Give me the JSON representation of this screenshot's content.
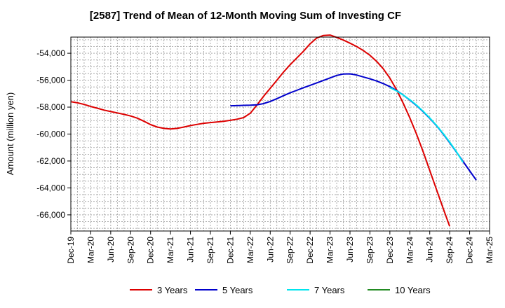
{
  "chart_data": {
    "type": "line",
    "title": "[2587]  Trend of Mean of 12-Month Moving Sum of Investing CF",
    "xlabel": "",
    "ylabel": "Amount (million yen)",
    "ylim": [
      -67200,
      -52800
    ],
    "xlim": [
      "Dec-19",
      "Mar-25"
    ],
    "grid": true,
    "legend_position": "bottom",
    "x_tick_labels": [
      "Dec-19",
      "Mar-20",
      "Jun-20",
      "Sep-20",
      "Dec-20",
      "Mar-21",
      "Jun-21",
      "Sep-21",
      "Dec-21",
      "Mar-22",
      "Jun-22",
      "Sep-22",
      "Dec-22",
      "Mar-23",
      "Jun-23",
      "Sep-23",
      "Dec-23",
      "Mar-24",
      "Jun-24",
      "Sep-24",
      "Dec-24",
      "Mar-25"
    ],
    "y_ticks": [
      -54000,
      -56000,
      -58000,
      -60000,
      -62000,
      -64000,
      -66000
    ],
    "y_tick_labels": [
      "-54,000",
      "-56,000",
      "-58,000",
      "-60,000",
      "-62,000",
      "-64,000",
      "-66,000"
    ],
    "series": [
      {
        "name": "3 Years",
        "color": "#dd0000",
        "start_index": 0,
        "values": [
          -57600,
          -57680,
          -57800,
          -57950,
          -58080,
          -58220,
          -58330,
          -58430,
          -58540,
          -58660,
          -58820,
          -59050,
          -59300,
          -59480,
          -59580,
          -59620,
          -59580,
          -59480,
          -59370,
          -59280,
          -59200,
          -59150,
          -59100,
          -59050,
          -58980,
          -58900,
          -58780,
          -58450,
          -57850,
          -57200,
          -56600,
          -56000,
          -55400,
          -54850,
          -54350,
          -53850,
          -53300,
          -52870,
          -52680,
          -52650,
          -52820,
          -53020,
          -53250,
          -53500,
          -53800,
          -54150,
          -54600,
          -55150,
          -55850,
          -56700,
          -57700,
          -58800,
          -60000,
          -61300,
          -62700,
          -64100,
          -65500,
          -66850
        ]
      },
      {
        "name": "5 Years",
        "color": "#0000cc",
        "start_index": 24,
        "values": [
          -57900,
          -57890,
          -57870,
          -57860,
          -57830,
          -57740,
          -57580,
          -57370,
          -57150,
          -56940,
          -56750,
          -56560,
          -56380,
          -56200,
          -56020,
          -55830,
          -55650,
          -55540,
          -55530,
          -55620,
          -55760,
          -55900,
          -56060,
          -56250,
          -56480,
          -56760,
          -57100,
          -57480,
          -57880,
          -58330,
          -58830,
          -59370,
          -59980,
          -60640,
          -61330,
          -62030,
          -62730,
          -63420
        ]
      },
      {
        "name": "7 Years",
        "color": "#00e5ee",
        "start_index": 48,
        "values": [
          -56550,
          -56800,
          -57100,
          -57450,
          -57850,
          -58300,
          -58800,
          -59350,
          -59950,
          -60600,
          -61300,
          -62100
        ]
      },
      {
        "name": "10 Years",
        "color": "#228b22",
        "start_index": 0,
        "values": []
      }
    ]
  }
}
